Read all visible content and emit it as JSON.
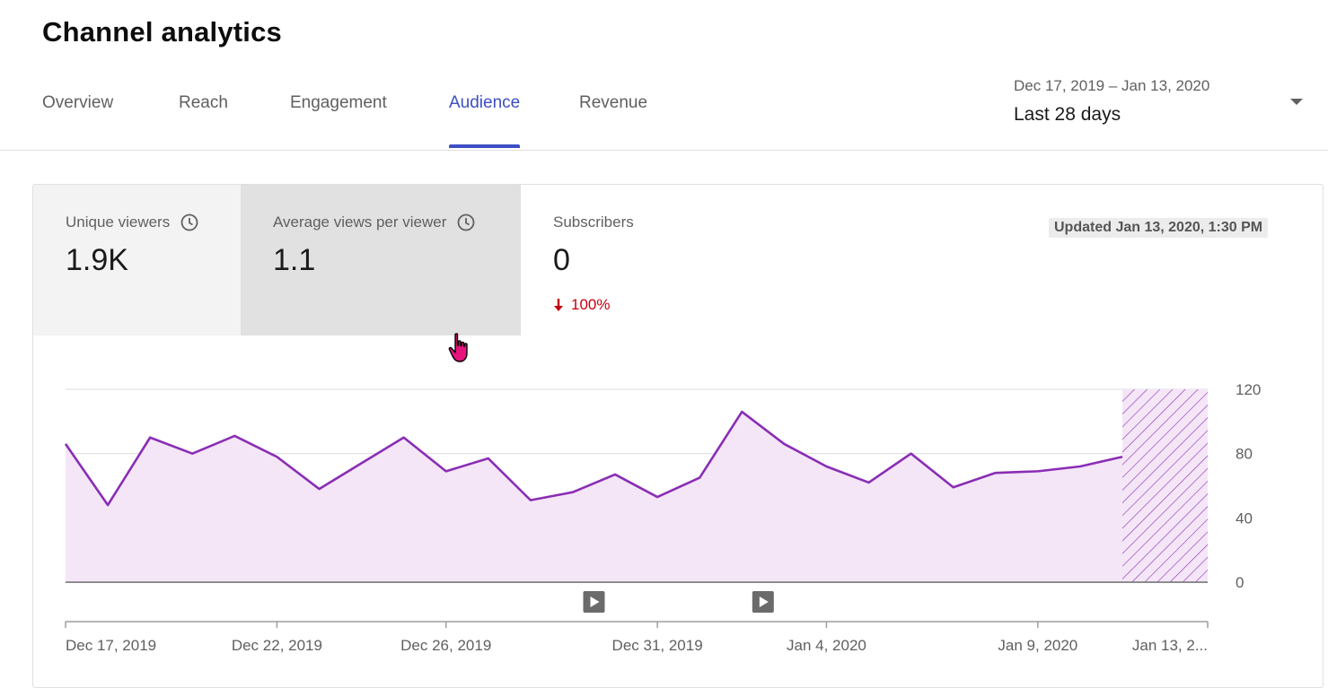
{
  "header": {
    "title": "Channel analytics",
    "tabs": [
      {
        "label": "Overview",
        "active": false
      },
      {
        "label": "Reach",
        "active": false
      },
      {
        "label": "Engagement",
        "active": false
      },
      {
        "label": "Audience",
        "active": true
      },
      {
        "label": "Revenue",
        "active": false
      }
    ]
  },
  "date_picker": {
    "range": "Dec 17, 2019 – Jan 13, 2020",
    "label": "Last 28 days"
  },
  "metrics": [
    {
      "label": "Unique viewers",
      "value": "1.9K",
      "icon": "clock-icon"
    },
    {
      "label": "Average views per viewer",
      "value": "1.1",
      "icon": "clock-icon"
    },
    {
      "label": "Subscribers",
      "value": "0",
      "delta": "100%",
      "delta_direction": "down"
    }
  ],
  "updated": "Updated Jan 13, 2020, 1:30 PM",
  "colors": {
    "accent": "#3e4fc4",
    "series_line": "#8a2db5",
    "series_fill": "#f4e6f7",
    "negative": "#c4000f"
  },
  "chart_data": {
    "type": "area",
    "x": [
      "Dec 17, 2019",
      "Dec 18, 2019",
      "Dec 19, 2019",
      "Dec 20, 2019",
      "Dec 21, 2019",
      "Dec 22, 2019",
      "Dec 23, 2019",
      "Dec 24, 2019",
      "Dec 25, 2019",
      "Dec 26, 2019",
      "Dec 27, 2019",
      "Dec 28, 2019",
      "Dec 29, 2019",
      "Dec 30, 2019",
      "Dec 31, 2019",
      "Jan 1, 2020",
      "Jan 2, 2020",
      "Jan 3, 2020",
      "Jan 4, 2020",
      "Jan 5, 2020",
      "Jan 6, 2020",
      "Jan 7, 2020",
      "Jan 8, 2020",
      "Jan 9, 2020",
      "Jan 10, 2020",
      "Jan 11, 2020",
      "Jan 12, 2020",
      "Jan 13, 2020"
    ],
    "series": [
      {
        "values": [
          86,
          48,
          90,
          80,
          91,
          78,
          58,
          74,
          90,
          69,
          77,
          51,
          56,
          67,
          53,
          65,
          106,
          86,
          72,
          62,
          80,
          59,
          68,
          69,
          72,
          78,
          null,
          null
        ]
      }
    ],
    "x_ticks": [
      "Dec 17, 2019",
      "Dec 22, 2019",
      "Dec 26, 2019",
      "Dec 31, 2019",
      "Jan 4, 2020",
      "Jan 9, 2020",
      "Jan 13, 2..."
    ],
    "y_ticks": [
      0,
      40,
      80,
      120
    ],
    "ylim": [
      0,
      120
    ],
    "partial_data_region": [
      "Jan 12, 2020",
      "Jan 13, 2020"
    ],
    "markers": [
      "Dec 29, 2019",
      "Jan 2, 2020"
    ],
    "grid": true,
    "y_axis_position": "right"
  }
}
